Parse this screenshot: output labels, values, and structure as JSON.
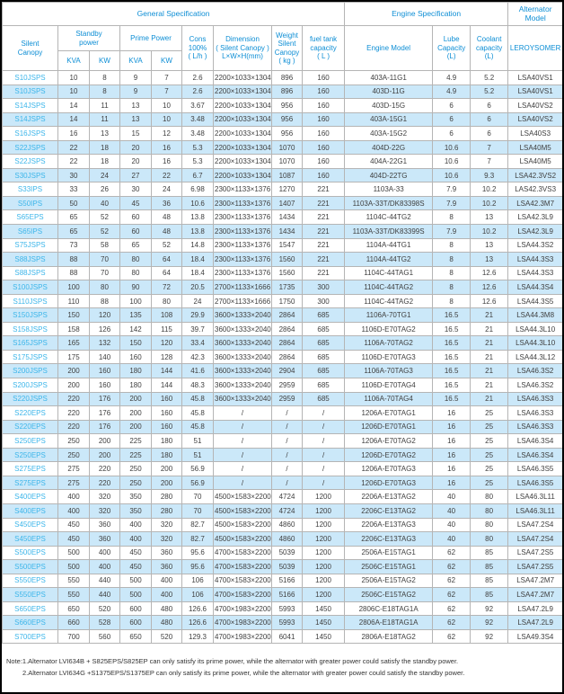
{
  "colors": {
    "header_text": "#0d8ed5",
    "model_link_text": "#3db6ea",
    "row_stripe": "#cbe8f9",
    "cell_border": "#b5b5b5",
    "body_text": "#3f3f3f",
    "page_border": "#000000"
  },
  "header": {
    "general_specification": "General Specification",
    "engine_specification": "Engine Specification",
    "alternator_model": "Alternator Model",
    "silent_canopy": "Silent\nCanopy",
    "standby_power": "Standby\npower",
    "prime_power": "Prime Power",
    "kva1": "KVA",
    "kw1": "KW",
    "kva2": "KVA",
    "kw2": "KW",
    "cons": "Cons\n100%\n( L/h )",
    "dimension": "Dimension\n( Silent Canopy )\nL×W×H(mm)",
    "weight": "Weight\nSilent\nCanopy\n( kg )",
    "fuel_tank": "fuel tank\ncapacity\n( L )",
    "engine_model": "Engine Model",
    "lube_capacity": "Lube\nCapacity\n(L)",
    "coolant_capacity": "Coolant\ncapacity\n(L)",
    "leroysomer": "LEROYSOMER"
  },
  "rows": [
    [
      "S10JSPS",
      "10",
      "8",
      "9",
      "7",
      "2.6",
      "2200×1033×1304",
      "896",
      "160",
      "403A-11G1",
      "4.9",
      "5.2",
      "LSA40VS1"
    ],
    [
      "S10JSPS",
      "10",
      "8",
      "9",
      "7",
      "2.6",
      "2200×1033×1304",
      "896",
      "160",
      "403D-11G",
      "4.9",
      "5.2",
      "LSA40VS1"
    ],
    [
      "S14JSPS",
      "14",
      "11",
      "13",
      "10",
      "3.67",
      "2200×1033×1304",
      "956",
      "160",
      "403D-15G",
      "6",
      "6",
      "LSA40VS2"
    ],
    [
      "S14JSPS",
      "14",
      "11",
      "13",
      "10",
      "3.48",
      "2200×1033×1304",
      "956",
      "160",
      "403A-15G1",
      "6",
      "6",
      "LSA40VS2"
    ],
    [
      "S16JSPS",
      "16",
      "13",
      "15",
      "12",
      "3.48",
      "2200×1033×1304",
      "956",
      "160",
      "403A-15G2",
      "6",
      "6",
      "LSA40S3"
    ],
    [
      "S22JSPS",
      "22",
      "18",
      "20",
      "16",
      "5.3",
      "2200×1033×1304",
      "1070",
      "160",
      "404D-22G",
      "10.6",
      "7",
      "LSA40M5"
    ],
    [
      "S22JSPS",
      "22",
      "18",
      "20",
      "16",
      "5.3",
      "2200×1033×1304",
      "1070",
      "160",
      "404A-22G1",
      "10.6",
      "7",
      "LSA40M5"
    ],
    [
      "S30JSPS",
      "30",
      "24",
      "27",
      "22",
      "6.7",
      "2200×1033×1304",
      "1087",
      "160",
      "404D-22TG",
      "10.6",
      "9.3",
      "LSA42.3VS2"
    ],
    [
      "S33IPS",
      "33",
      "26",
      "30",
      "24",
      "6.98",
      "2300×1133×1376",
      "1270",
      "221",
      "1103A-33",
      "7.9",
      "10.2",
      "LAS42.3VS3"
    ],
    [
      "S50IPS",
      "50",
      "40",
      "45",
      "36",
      "10.6",
      "2300×1133×1376",
      "1407",
      "221",
      "1103A-33T/DK83398S",
      "7.9",
      "10.2",
      "LSA42.3M7"
    ],
    [
      "S65EPS",
      "65",
      "52",
      "60",
      "48",
      "13.8",
      "2300×1133×1376",
      "1434",
      "221",
      "1104C-44TG2",
      "8",
      "13",
      "LSA42.3L9"
    ],
    [
      "S65IPS",
      "65",
      "52",
      "60",
      "48",
      "13.8",
      "2300×1133×1376",
      "1434",
      "221",
      "1103A-33T/DK83399S",
      "7.9",
      "10.2",
      "LSA42.3L9"
    ],
    [
      "S75JSPS",
      "73",
      "58",
      "65",
      "52",
      "14.8",
      "2300×1133×1376",
      "1547",
      "221",
      "1104A-44TG1",
      "8",
      "13",
      "LSA44.3S2"
    ],
    [
      "S88JSPS",
      "88",
      "70",
      "80",
      "64",
      "18.4",
      "2300×1133×1376",
      "1560",
      "221",
      "1104A-44TG2",
      "8",
      "13",
      "LSA44.3S3"
    ],
    [
      "S88JSPS",
      "88",
      "70",
      "80",
      "64",
      "18.4",
      "2300×1133×1376",
      "1560",
      "221",
      "1104C-44TAG1",
      "8",
      "12.6",
      "LSA44.3S3"
    ],
    [
      "S100JSPS",
      "100",
      "80",
      "90",
      "72",
      "20.5",
      "2700×1133×1666",
      "1735",
      "300",
      "1104C-44TAG2",
      "8",
      "12.6",
      "LSA44.3S4"
    ],
    [
      "S110JSPS",
      "110",
      "88",
      "100",
      "80",
      "24",
      "2700×1133×1666",
      "1750",
      "300",
      "1104C-44TAG2",
      "8",
      "12.6",
      "LSA44.3S5"
    ],
    [
      "S150JSPS",
      "150",
      "120",
      "135",
      "108",
      "29.9",
      "3600×1333×2040",
      "2864",
      "685",
      "1106A-70TG1",
      "16.5",
      "21",
      "LSA44.3M8"
    ],
    [
      "S158JSPS",
      "158",
      "126",
      "142",
      "115",
      "39.7",
      "3600×1333×2040",
      "2864",
      "685",
      "1106D-E70TAG2",
      "16.5",
      "21",
      "LSA44.3L10"
    ],
    [
      "S165JSPS",
      "165",
      "132",
      "150",
      "120",
      "33.4",
      "3600×1333×2040",
      "2864",
      "685",
      "1106A-70TAG2",
      "16.5",
      "21",
      "LSA44.3L10"
    ],
    [
      "S175JSPS",
      "175",
      "140",
      "160",
      "128",
      "42.3",
      "3600×1333×2040",
      "2864",
      "685",
      "1106D-E70TAG3",
      "16.5",
      "21",
      "LSA44.3L12"
    ],
    [
      "S200JSPS",
      "200",
      "160",
      "180",
      "144",
      "41.6",
      "3600×1333×2040",
      "2904",
      "685",
      "1106A-70TAG3",
      "16.5",
      "21",
      "LSA46.3S2"
    ],
    [
      "S200JSPS",
      "200",
      "160",
      "180",
      "144",
      "48.3",
      "3600×1333×2040",
      "2959",
      "685",
      "1106D-E70TAG4",
      "16.5",
      "21",
      "LSA46.3S2"
    ],
    [
      "S220JSPS",
      "220",
      "176",
      "200",
      "160",
      "45.8",
      "3600×1333×2040",
      "2959",
      "685",
      "1106A-70TAG4",
      "16.5",
      "21",
      "LSA46.3S3"
    ],
    [
      "S220EPS",
      "220",
      "176",
      "200",
      "160",
      "45.8",
      "/",
      "/",
      "/",
      "1206A-E70TAG1",
      "16",
      "25",
      "LSA46.3S3"
    ],
    [
      "S220EPS",
      "220",
      "176",
      "200",
      "160",
      "45.8",
      "/",
      "/",
      "/",
      "1206D-E70TAG1",
      "16",
      "25",
      "LSA46.3S3"
    ],
    [
      "S250EPS",
      "250",
      "200",
      "225",
      "180",
      "51",
      "/",
      "/",
      "/",
      "1206A-E70TAG2",
      "16",
      "25",
      "LSA46.3S4"
    ],
    [
      "S250EPS",
      "250",
      "200",
      "225",
      "180",
      "51",
      "/",
      "/",
      "/",
      "1206D-E70TAG2",
      "16",
      "25",
      "LSA46.3S4"
    ],
    [
      "S275EPS",
      "275",
      "220",
      "250",
      "200",
      "56.9",
      "/",
      "/",
      "/",
      "1206A-E70TAG3",
      "16",
      "25",
      "LSA46.3S5"
    ],
    [
      "S275EPS",
      "275",
      "220",
      "250",
      "200",
      "56.9",
      "/",
      "/",
      "/",
      "1206D-E70TAG3",
      "16",
      "25",
      "LSA46.3S5"
    ],
    [
      "S400EPS",
      "400",
      "320",
      "350",
      "280",
      "70",
      "4500×1583×2200",
      "4724",
      "1200",
      "2206A-E13TAG2",
      "40",
      "80",
      "LSA46.3L11"
    ],
    [
      "S400EPS",
      "400",
      "320",
      "350",
      "280",
      "70",
      "4500×1583×2200",
      "4724",
      "1200",
      "2206C-E13TAG2",
      "40",
      "80",
      "LSA46.3L11"
    ],
    [
      "S450EPS",
      "450",
      "360",
      "400",
      "320",
      "82.7",
      "4500×1583×2200",
      "4860",
      "1200",
      "2206A-E13TAG3",
      "40",
      "80",
      "LSA47.2S4"
    ],
    [
      "S450EPS",
      "450",
      "360",
      "400",
      "320",
      "82.7",
      "4500×1583×2200",
      "4860",
      "1200",
      "2206C-E13TAG3",
      "40",
      "80",
      "LSA47.2S4"
    ],
    [
      "S500EPS",
      "500",
      "400",
      "450",
      "360",
      "95.6",
      "4700×1583×2200",
      "5039",
      "1200",
      "2506A-E15TAG1",
      "62",
      "85",
      "LSA47.2S5"
    ],
    [
      "S500EPS",
      "500",
      "400",
      "450",
      "360",
      "95.6",
      "4700×1583×2200",
      "5039",
      "1200",
      "2506C-E15TAG1",
      "62",
      "85",
      "LSA47.2S5"
    ],
    [
      "S550EPS",
      "550",
      "440",
      "500",
      "400",
      "106",
      "4700×1583×2200",
      "5166",
      "1200",
      "2506A-E15TAG2",
      "62",
      "85",
      "LSA47.2M7"
    ],
    [
      "S550EPS",
      "550",
      "440",
      "500",
      "400",
      "106",
      "4700×1583×2200",
      "5166",
      "1200",
      "2506C-E15TAG2",
      "62",
      "85",
      "LSA47.2M7"
    ],
    [
      "S650EPS",
      "650",
      "520",
      "600",
      "480",
      "126.6",
      "4700×1983×2200",
      "5993",
      "1450",
      "2806C-E18TAG1A",
      "62",
      "92",
      "LSA47.2L9"
    ],
    [
      "S660EPS",
      "660",
      "528",
      "600",
      "480",
      "126.6",
      "4700×1983×2200",
      "5993",
      "1450",
      "2806A-E18TAG1A",
      "62",
      "92",
      "LSA47.2L9"
    ],
    [
      "S700EPS",
      "700",
      "560",
      "650",
      "520",
      "129.3",
      "4700×1983×2200",
      "6041",
      "1450",
      "2806A-E18TAG2",
      "62",
      "92",
      "LSA49.3S4"
    ]
  ],
  "notes": {
    "line1": "Note:1.Alternator LVI634B + S825EPS/S825EP can only satisfy its prime power, while the alternator with greater power could satisfy the standby power.",
    "line2": "2.Alternator LVI634G +S1375EPS/S1375EP can only satisfy its prime power, while the alternator with greater power could satisfy the standby power."
  }
}
